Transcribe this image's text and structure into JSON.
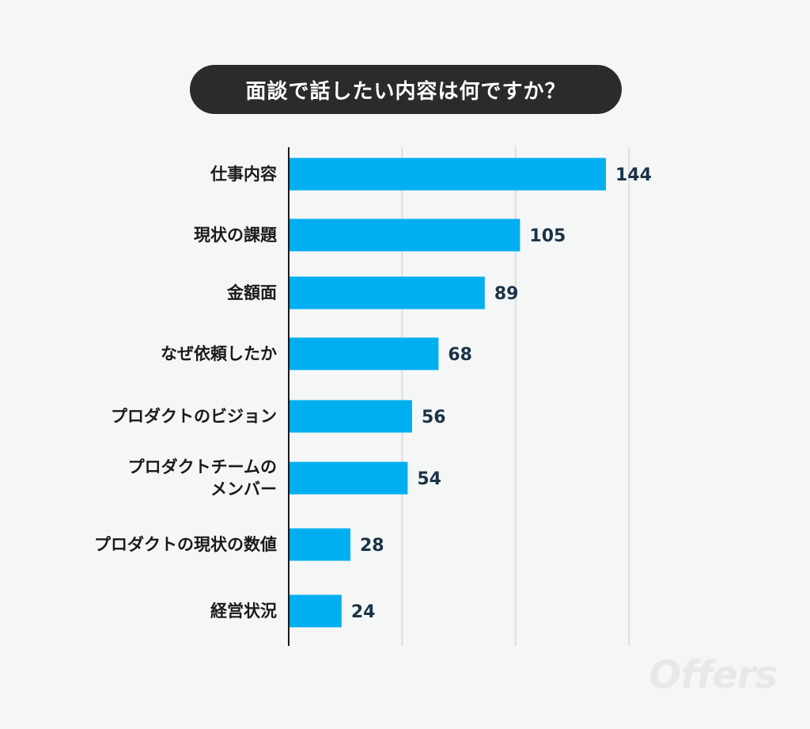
{
  "colors": {
    "bar": "#00aff0",
    "axis": "#1a1a1a",
    "grid": "#dcdedf",
    "value_label": "#1b3347",
    "title_bg": "#2b2b2b",
    "background": "#f5f7f7"
  },
  "watermark": "Offers",
  "chart_data": {
    "type": "bar",
    "orientation": "horizontal",
    "title": "面談で話したい内容は何ですか？",
    "xlabel": "",
    "ylabel": "",
    "xlim": [
      0,
      200
    ],
    "grid": true,
    "categories": [
      [
        "仕事内容"
      ],
      [
        "現状の課題"
      ],
      [
        "金額面"
      ],
      [
        "なぜ依頼したか"
      ],
      [
        "プロダクトのビジョン"
      ],
      [
        "プロダクトチームの",
        "メンバー"
      ],
      [
        "プロダクトの現状の数値"
      ],
      [
        "経営状況"
      ]
    ],
    "values": [
      144,
      105,
      89,
      68,
      56,
      54,
      28,
      24
    ]
  }
}
